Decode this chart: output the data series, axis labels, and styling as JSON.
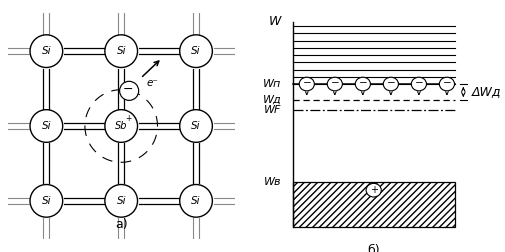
{
  "title_a": "а)",
  "title_b": "б)",
  "bg_color": "#ffffff",
  "label_W": "W",
  "label_Wn": "Wп",
  "label_Wd": "Wд",
  "label_WF": "WF",
  "label_We": "Wв",
  "label_DWd": "ΔWд",
  "electron_label": "e⁻"
}
